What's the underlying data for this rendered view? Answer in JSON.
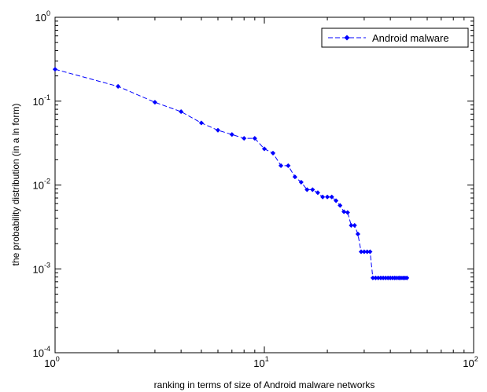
{
  "chart_data": {
    "type": "line",
    "xlabel": "ranking in terms of size of Android malware networks",
    "ylabel": "the probability distribution (in a ln form)",
    "xscale": "log",
    "yscale": "log",
    "xlim": [
      1,
      100
    ],
    "ylim": [
      0.0001,
      1
    ],
    "grid": false,
    "legend_position": "top-right",
    "x_ticks": [
      {
        "value": 1,
        "base": "10",
        "exp": "0"
      },
      {
        "value": 10,
        "base": "10",
        "exp": "1"
      },
      {
        "value": 100,
        "base": "10",
        "exp": "2"
      }
    ],
    "y_ticks": [
      {
        "value": 1,
        "base": "10",
        "exp": "0"
      },
      {
        "value": 0.1,
        "base": "10",
        "exp": "-1"
      },
      {
        "value": 0.01,
        "base": "10",
        "exp": "-2"
      },
      {
        "value": 0.001,
        "base": "10",
        "exp": "-3"
      },
      {
        "value": 0.0001,
        "base": "10",
        "exp": "-4"
      }
    ],
    "series": [
      {
        "name": "Android malware",
        "color": "#0000ff",
        "line_style": "dashed",
        "marker": "diamond",
        "x": [
          1,
          2,
          3,
          4,
          5,
          6,
          7,
          8,
          9,
          10,
          11,
          12,
          13,
          14,
          15,
          16,
          17,
          18,
          19,
          20,
          21,
          22,
          23,
          24,
          25,
          26,
          27,
          28,
          29,
          30,
          31,
          32,
          33,
          34,
          35,
          36,
          37,
          38,
          39,
          40,
          41,
          42,
          43,
          44,
          45,
          46,
          47,
          48
        ],
        "y": [
          0.24,
          0.15,
          0.097,
          0.075,
          0.055,
          0.045,
          0.04,
          0.036,
          0.036,
          0.027,
          0.024,
          0.017,
          0.017,
          0.0125,
          0.0108,
          0.0088,
          0.0088,
          0.0081,
          0.0072,
          0.0072,
          0.0072,
          0.0065,
          0.0057,
          0.0048,
          0.0047,
          0.0033,
          0.0033,
          0.0026,
          0.0016,
          0.0016,
          0.0016,
          0.0016,
          0.00078,
          0.00078,
          0.00078,
          0.00078,
          0.00078,
          0.00078,
          0.00078,
          0.00078,
          0.00078,
          0.00078,
          0.00078,
          0.00078,
          0.00078,
          0.00078,
          0.00078,
          0.00078
        ]
      }
    ]
  }
}
